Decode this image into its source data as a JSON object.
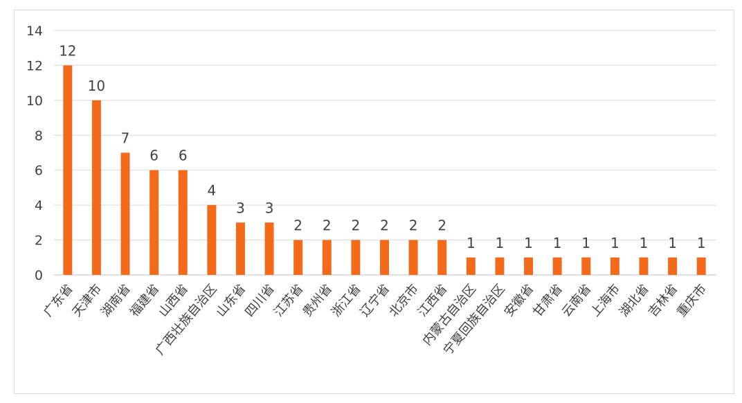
{
  "chart_data": {
    "type": "bar",
    "categories": [
      "广东省",
      "天津市",
      "湖南省",
      "福建省",
      "山西省",
      "广西壮族自治区",
      "山东省",
      "四川省",
      "江苏省",
      "贵州省",
      "浙江省",
      "辽宁省",
      "北京市",
      "江西省",
      "内蒙古自治区",
      "宁夏回族自治区",
      "安徽省",
      "甘肃省",
      "云南省",
      "上海市",
      "湖北省",
      "吉林省",
      "重庆市"
    ],
    "values": [
      12,
      10,
      7,
      6,
      6,
      4,
      3,
      3,
      2,
      2,
      2,
      2,
      2,
      2,
      1,
      1,
      1,
      1,
      1,
      1,
      1,
      1,
      1
    ],
    "ylim": [
      0,
      14
    ],
    "yticks": [
      0,
      2,
      4,
      6,
      8,
      10,
      12,
      14
    ],
    "grid": true,
    "data_labels": true,
    "legend": "none",
    "colors": {
      "bar": "#F26B1D",
      "grid": "#d9d9d9",
      "text": "#404040"
    }
  }
}
